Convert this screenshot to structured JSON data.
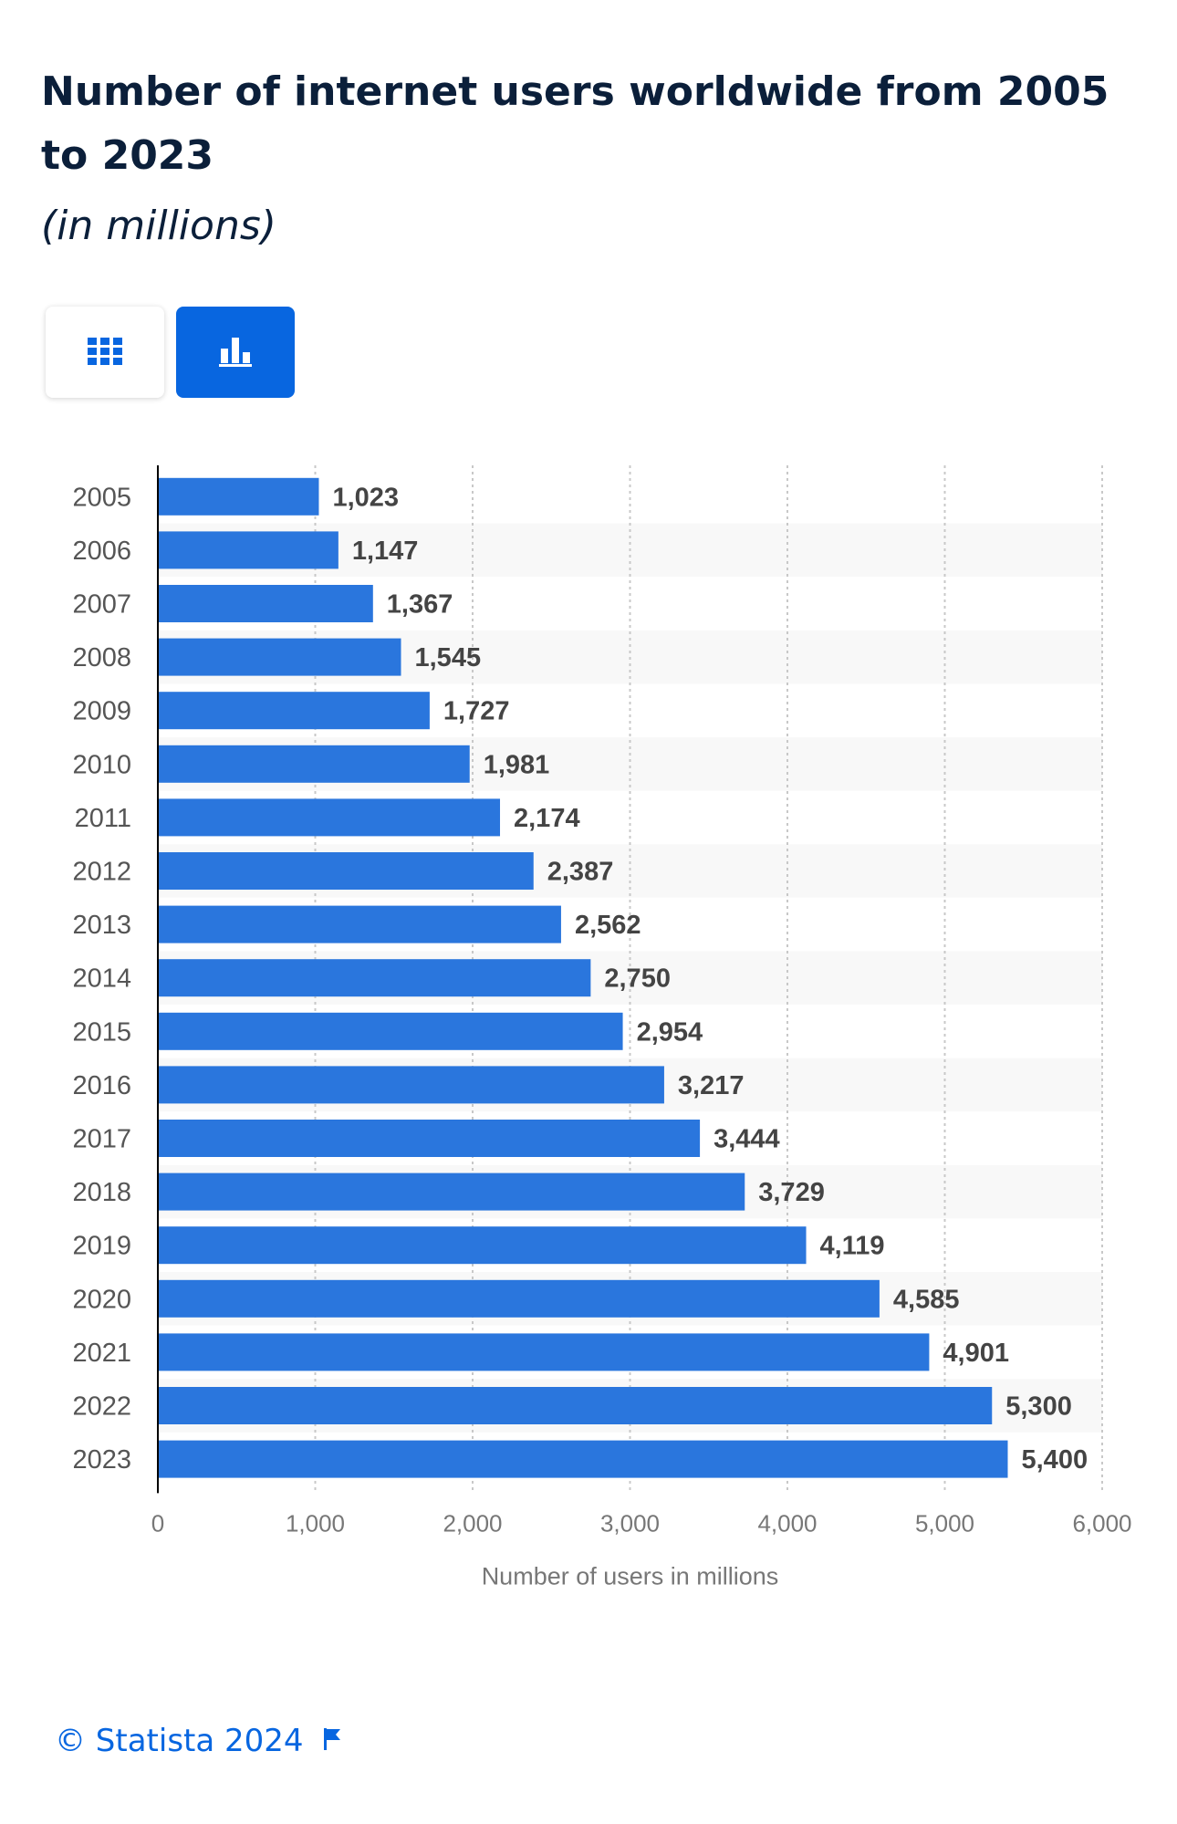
{
  "header": {
    "title": "Number of internet users worldwide from 2005 to 2023",
    "subtitle": "(in millions)"
  },
  "view_toggle": {
    "table_icon": "grid-icon",
    "chart_icon": "bar-chart-icon",
    "active": "chart",
    "accent_color": "#0866e0"
  },
  "footer": {
    "copyright": "© Statista 2024",
    "flag_icon": "flag-icon"
  },
  "chart_data": {
    "type": "bar",
    "orientation": "horizontal",
    "categories": [
      "2005",
      "2006",
      "2007",
      "2008",
      "2009",
      "2010",
      "2011",
      "2012",
      "2013",
      "2014",
      "2015",
      "2016",
      "2017",
      "2018",
      "2019",
      "2020",
      "2021",
      "2022",
      "2023"
    ],
    "values": [
      1023,
      1147,
      1367,
      1545,
      1727,
      1981,
      2174,
      2387,
      2562,
      2750,
      2954,
      3217,
      3444,
      3729,
      4119,
      4585,
      4901,
      5300,
      5400
    ],
    "value_labels": [
      "1,023",
      "1,147",
      "1,367",
      "1,545",
      "1,727",
      "1,981",
      "2,174",
      "2,387",
      "2,562",
      "2,750",
      "2,954",
      "3,217",
      "3,444",
      "3,729",
      "4,119",
      "4,585",
      "4,901",
      "5,300",
      "5,400"
    ],
    "xlabel": "Number of users in millions",
    "ylabel": "",
    "xlim": [
      0,
      6000
    ],
    "x_ticks": [
      0,
      1000,
      2000,
      3000,
      4000,
      5000,
      6000
    ],
    "x_tick_labels": [
      "0",
      "1,000",
      "2,000",
      "3,000",
      "4,000",
      "5,000",
      "6,000"
    ],
    "grid": true,
    "bar_color": "#2a76dd"
  }
}
